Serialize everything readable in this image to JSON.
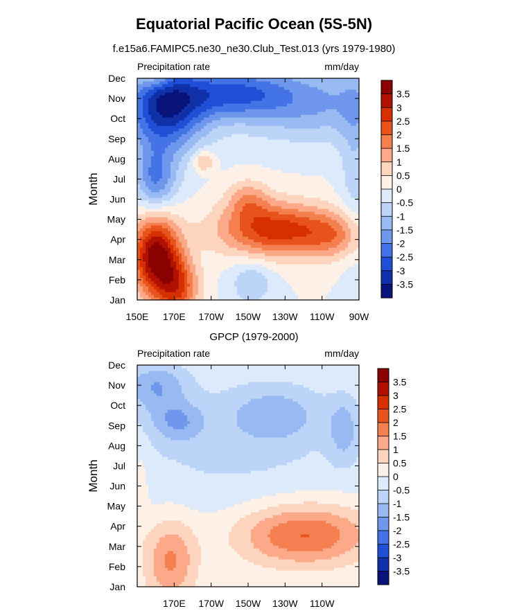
{
  "title": "Equatorial Pacific Ocean (5S-5N)",
  "chart_data": [
    {
      "type": "heatmap",
      "subtitle": "f.e15a6.FAMIPC5.ne30_ne30.Club_Test.013 (yrs 1979-1980)",
      "left_label": "Precipitation rate",
      "right_label": "mm/day",
      "ylabel": "Month",
      "xlabel": "",
      "x_range": [
        150,
        270
      ],
      "x_ticks": [
        {
          "value": 150,
          "label": "150E"
        },
        {
          "value": 170,
          "label": "170E"
        },
        {
          "value": 190,
          "label": "170W"
        },
        {
          "value": 210,
          "label": "150W"
        },
        {
          "value": 230,
          "label": "130W"
        },
        {
          "value": 250,
          "label": "110W"
        },
        {
          "value": 270,
          "label": "90W"
        }
      ],
      "y_ticks": [
        "Jan",
        "Feb",
        "Mar",
        "Apr",
        "May",
        "Jun",
        "Jul",
        "Aug",
        "Sep",
        "Oct",
        "Nov",
        "Dec"
      ],
      "colorbar_labels": [
        "3.5",
        "3",
        "2.5",
        "2",
        "1.5",
        "1",
        "0.5",
        "0",
        "-0.5",
        "-1",
        "-1.5",
        "-2",
        "-2.5",
        "-3",
        "-3.5"
      ],
      "colors": [
        "#8b0000",
        "#b01000",
        "#d63000",
        "#e8531c",
        "#f47f4f",
        "#fba989",
        "#fdd5bf",
        "#fdf0e6",
        "#ddeafb",
        "#bcd4f8",
        "#98b9f2",
        "#6f97ec",
        "#4473e6",
        "#1f4fd6",
        "#1030a8",
        "#08147a"
      ],
      "anomalies": [
        {
          "lon": 160,
          "month": 2.2,
          "sx": 9,
          "sy": 1.4,
          "amp": 3.8
        },
        {
          "lon": 172,
          "month": 0.6,
          "sx": 8,
          "sy": 1.1,
          "amp": 2.2
        },
        {
          "lon": 225,
          "month": 3.5,
          "sx": 22,
          "sy": 0.95,
          "amp": 2.8
        },
        {
          "lon": 258,
          "month": 3.2,
          "sx": 12,
          "sy": 0.8,
          "amp": 1.2
        },
        {
          "lon": 210,
          "month": 5.0,
          "sx": 8,
          "sy": 0.7,
          "amp": 1.2
        },
        {
          "lon": 165,
          "month": 9.5,
          "sx": 15,
          "sy": 1.5,
          "amp": -3.3
        },
        {
          "lon": 200,
          "month": 10.3,
          "sx": 22,
          "sy": 0.9,
          "amp": -2.2
        },
        {
          "lon": 245,
          "month": 9.8,
          "sx": 30,
          "sy": 1.3,
          "amp": -1.5
        },
        {
          "lon": 160,
          "month": 6.0,
          "sx": 8,
          "sy": 1.1,
          "amp": -2.0
        },
        {
          "lon": 212,
          "month": 0.9,
          "sx": 8,
          "sy": 0.8,
          "amp": -1.0
        },
        {
          "lon": 186,
          "month": 6.9,
          "sx": 4,
          "sy": 0.35,
          "amp": 1.3
        },
        {
          "lon": 160,
          "month": 11.0,
          "sx": 6,
          "sy": 0.35,
          "amp": 0.8
        },
        {
          "lon": 268,
          "month": 7.0,
          "sx": 6,
          "sy": 3.5,
          "amp": -0.8
        }
      ]
    },
    {
      "type": "heatmap",
      "subtitle": "GPCP (1979-2000)",
      "left_label": "Precipitation rate",
      "right_label": "mm/day",
      "ylabel": "Month",
      "xlabel": "",
      "x_range": [
        150,
        270
      ],
      "x_ticks": [
        {
          "value": 170,
          "label": "170E"
        },
        {
          "value": 190,
          "label": "170W"
        },
        {
          "value": 210,
          "label": "150W"
        },
        {
          "value": 230,
          "label": "130W"
        },
        {
          "value": 250,
          "label": "110W"
        }
      ],
      "y_ticks": [
        "Jan",
        "Feb",
        "Mar",
        "Apr",
        "May",
        "Jun",
        "Jul",
        "Aug",
        "Sep",
        "Oct",
        "Nov",
        "Dec"
      ],
      "colorbar_labels": [
        "3.5",
        "3",
        "2.5",
        "2",
        "1.5",
        "1",
        "0.5",
        "0",
        "-0.5",
        "-1",
        "-1.5",
        "-2",
        "-2.5",
        "-3",
        "-3.5"
      ],
      "colors": [
        "#8b0000",
        "#b01000",
        "#d63000",
        "#e8531c",
        "#f47f4f",
        "#fba989",
        "#fdd5bf",
        "#fdf0e6",
        "#ddeafb",
        "#bcd4f8",
        "#98b9f2",
        "#6f97ec",
        "#4473e6",
        "#1f4fd6",
        "#1030a8",
        "#08147a"
      ],
      "anomalies": [
        {
          "lon": 240,
          "month": 2.6,
          "sx": 26,
          "sy": 1.1,
          "amp": 2.1
        },
        {
          "lon": 168,
          "month": 1.3,
          "sx": 10,
          "sy": 1.5,
          "amp": 1.6
        },
        {
          "lon": 160,
          "month": 10.0,
          "sx": 12,
          "sy": 0.9,
          "amp": -1.3
        },
        {
          "lon": 172,
          "month": 8.2,
          "sx": 10,
          "sy": 0.7,
          "amp": -1.1
        },
        {
          "lon": 225,
          "month": 8.6,
          "sx": 18,
          "sy": 1.0,
          "amp": -1.0
        },
        {
          "lon": 262,
          "month": 7.8,
          "sx": 6,
          "sy": 1.2,
          "amp": -1.0
        },
        {
          "lon": 200,
          "month": 7.0,
          "sx": 50,
          "sy": 2.5,
          "amp": -0.6
        },
        {
          "lon": 160,
          "month": 11.4,
          "sx": 6,
          "sy": 0.35,
          "amp": 0.8
        },
        {
          "lon": 152,
          "month": 5.0,
          "sx": 3,
          "sy": 1.6,
          "amp": 0.5
        }
      ]
    }
  ]
}
